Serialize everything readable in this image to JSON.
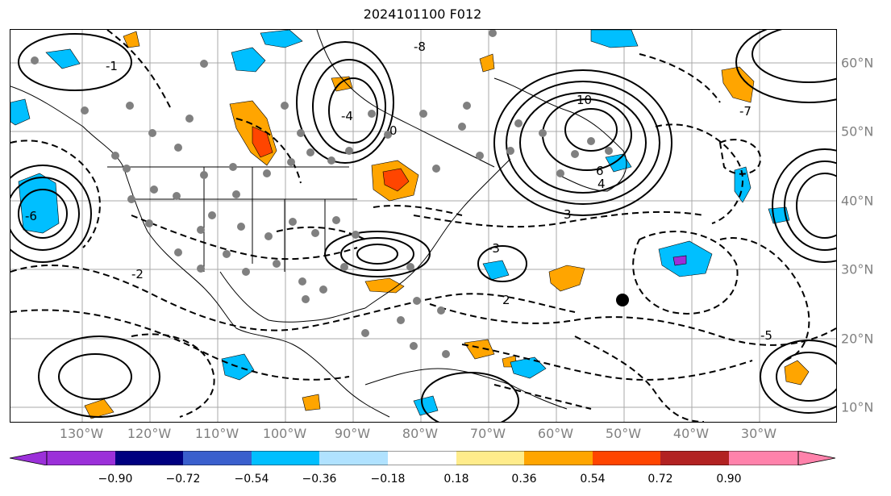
{
  "title": "2024101100 F012",
  "lon_labels": [
    "130°W",
    "120°W",
    "110°W",
    "100°W",
    "90°W",
    "80°W",
    "70°W",
    "60°W",
    "50°W",
    "40°W",
    "30°W"
  ],
  "lat_labels": [
    "60°N",
    "50°N",
    "40°N",
    "30°N",
    "20°N",
    "10°N"
  ],
  "colorbar": {
    "ticks": [
      "−0.90",
      "−0.72",
      "−0.54",
      "−0.36",
      "−0.18",
      "0.18",
      "0.36",
      "0.54",
      "0.72",
      "0.90"
    ],
    "colors": [
      "#9b30d9",
      "#000080",
      "#3a5fcd",
      "#00bfff",
      "#b0e2ff",
      "#ffffff",
      "#ffec8b",
      "#ffa500",
      "#ff4500",
      "#b22222",
      "#ff82ab"
    ]
  },
  "contour_labels": [
    "-1",
    "-2",
    "3",
    "-4",
    "4",
    "-5",
    "-6",
    "6",
    "-7",
    "10",
    "0",
    "-3",
    "2",
    "-8"
  ],
  "colors": {
    "contour": "#000000",
    "station_dot": "#808080",
    "grid": "#a9a9a9",
    "axis_label": "#808080"
  }
}
